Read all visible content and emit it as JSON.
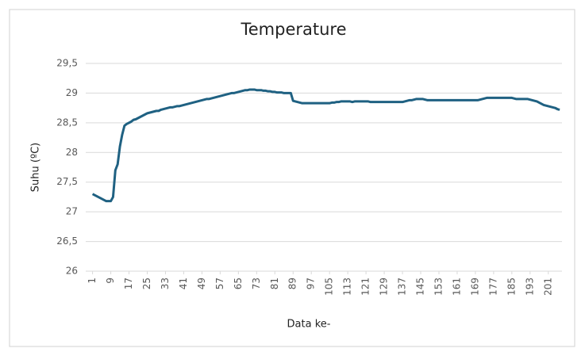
{
  "chart_data": {
    "type": "line",
    "title": "Temperature",
    "x_label": "Data ke-",
    "y_label": "Suhu (ºC)",
    "color": "#1f6182",
    "grid": true,
    "xlim": [
      -2,
      207
    ],
    "ylim": [
      26,
      29.5
    ],
    "xticks": [
      1,
      9,
      17,
      25,
      33,
      41,
      49,
      57,
      65,
      73,
      81,
      89,
      97,
      105,
      113,
      121,
      129,
      137,
      145,
      153,
      161,
      169,
      177,
      185,
      193,
      201
    ],
    "yticks": [
      26,
      {
        "value": 26.5,
        "label": "26,5"
      },
      27,
      {
        "value": 27.5,
        "label": "27,5"
      },
      28,
      {
        "value": 28.5,
        "label": "28,5"
      },
      29,
      {
        "value": 29.5,
        "label": "29,5"
      }
    ],
    "x": [
      1,
      2,
      3,
      4,
      5,
      6,
      7,
      8,
      9,
      10,
      11,
      12,
      13,
      14,
      15,
      16,
      17,
      18,
      19,
      20,
      21,
      22,
      23,
      24,
      25,
      26,
      27,
      28,
      29,
      30,
      31,
      32,
      33,
      34,
      35,
      36,
      37,
      38,
      39,
      40,
      41,
      42,
      43,
      44,
      45,
      46,
      47,
      48,
      49,
      50,
      51,
      52,
      53,
      54,
      55,
      56,
      57,
      58,
      59,
      60,
      61,
      62,
      63,
      64,
      65,
      66,
      67,
      68,
      69,
      70,
      71,
      72,
      73,
      74,
      75,
      76,
      77,
      78,
      79,
      80,
      81,
      82,
      83,
      84,
      85,
      86,
      87,
      88,
      89,
      90,
      91,
      92,
      93,
      94,
      95,
      96,
      97,
      98,
      99,
      100,
      101,
      102,
      103,
      104,
      105,
      106,
      107,
      108,
      109,
      110,
      111,
      112,
      113,
      114,
      115,
      116,
      117,
      118,
      119,
      120,
      121,
      122,
      123,
      124,
      125,
      126,
      127,
      128,
      129,
      130,
      131,
      132,
      133,
      134,
      135,
      136,
      137,
      138,
      139,
      140,
      141,
      142,
      143,
      144,
      145,
      146,
      147,
      148,
      149,
      150,
      151,
      152,
      153,
      154,
      155,
      156,
      157,
      158,
      159,
      160,
      161,
      162,
      163,
      164,
      165,
      166,
      167,
      168,
      169,
      170,
      171,
      172,
      173,
      174,
      175,
      176,
      177,
      178,
      179,
      180,
      181,
      182,
      183,
      184,
      185,
      186,
      187,
      188,
      189,
      190,
      191,
      192,
      193,
      194,
      195,
      196,
      197,
      198,
      199,
      200,
      201,
      202,
      203,
      204,
      205,
      206
    ],
    "values": [
      27.3,
      27.28,
      27.26,
      27.24,
      27.22,
      27.2,
      27.18,
      27.18,
      27.18,
      27.25,
      27.7,
      27.8,
      28.1,
      28.3,
      28.45,
      28.48,
      28.5,
      28.52,
      28.55,
      28.56,
      28.58,
      28.6,
      28.62,
      28.64,
      28.66,
      28.67,
      28.68,
      28.69,
      28.7,
      28.7,
      28.72,
      28.73,
      28.74,
      28.75,
      28.76,
      28.76,
      28.77,
      28.78,
      28.78,
      28.79,
      28.8,
      28.81,
      28.82,
      28.83,
      28.84,
      28.85,
      28.86,
      28.87,
      28.88,
      28.89,
      28.9,
      28.9,
      28.91,
      28.92,
      28.93,
      28.94,
      28.95,
      28.96,
      28.97,
      28.98,
      28.99,
      29.0,
      29.0,
      29.01,
      29.02,
      29.03,
      29.04,
      29.05,
      29.05,
      29.06,
      29.06,
      29.06,
      29.05,
      29.05,
      29.05,
      29.04,
      29.04,
      29.03,
      29.03,
      29.02,
      29.02,
      29.01,
      29.01,
      29.01,
      29.0,
      29.0,
      29.0,
      29.0,
      28.87,
      28.86,
      28.85,
      28.84,
      28.83,
      28.83,
      28.83,
      28.83,
      28.83,
      28.83,
      28.83,
      28.83,
      28.83,
      28.83,
      28.83,
      28.83,
      28.83,
      28.84,
      28.84,
      28.85,
      28.85,
      28.86,
      28.86,
      28.86,
      28.86,
      28.86,
      28.85,
      28.86,
      28.86,
      28.86,
      28.86,
      28.86,
      28.86,
      28.86,
      28.85,
      28.85,
      28.85,
      28.85,
      28.85,
      28.85,
      28.85,
      28.85,
      28.85,
      28.85,
      28.85,
      28.85,
      28.85,
      28.85,
      28.85,
      28.86,
      28.87,
      28.88,
      28.88,
      28.89,
      28.9,
      28.9,
      28.9,
      28.9,
      28.89,
      28.88,
      28.88,
      28.88,
      28.88,
      28.88,
      28.88,
      28.88,
      28.88,
      28.88,
      28.88,
      28.88,
      28.88,
      28.88,
      28.88,
      28.88,
      28.88,
      28.88,
      28.88,
      28.88,
      28.88,
      28.88,
      28.88,
      28.88,
      28.89,
      28.9,
      28.91,
      28.92,
      28.92,
      28.92,
      28.92,
      28.92,
      28.92,
      28.92,
      28.92,
      28.92,
      28.92,
      28.92,
      28.92,
      28.91,
      28.9,
      28.9,
      28.9,
      28.9,
      28.9,
      28.9,
      28.89,
      28.88,
      28.87,
      28.86,
      28.84,
      28.82,
      28.8,
      28.79,
      28.78,
      28.77,
      28.76,
      28.75,
      28.73,
      28.72
    ]
  }
}
